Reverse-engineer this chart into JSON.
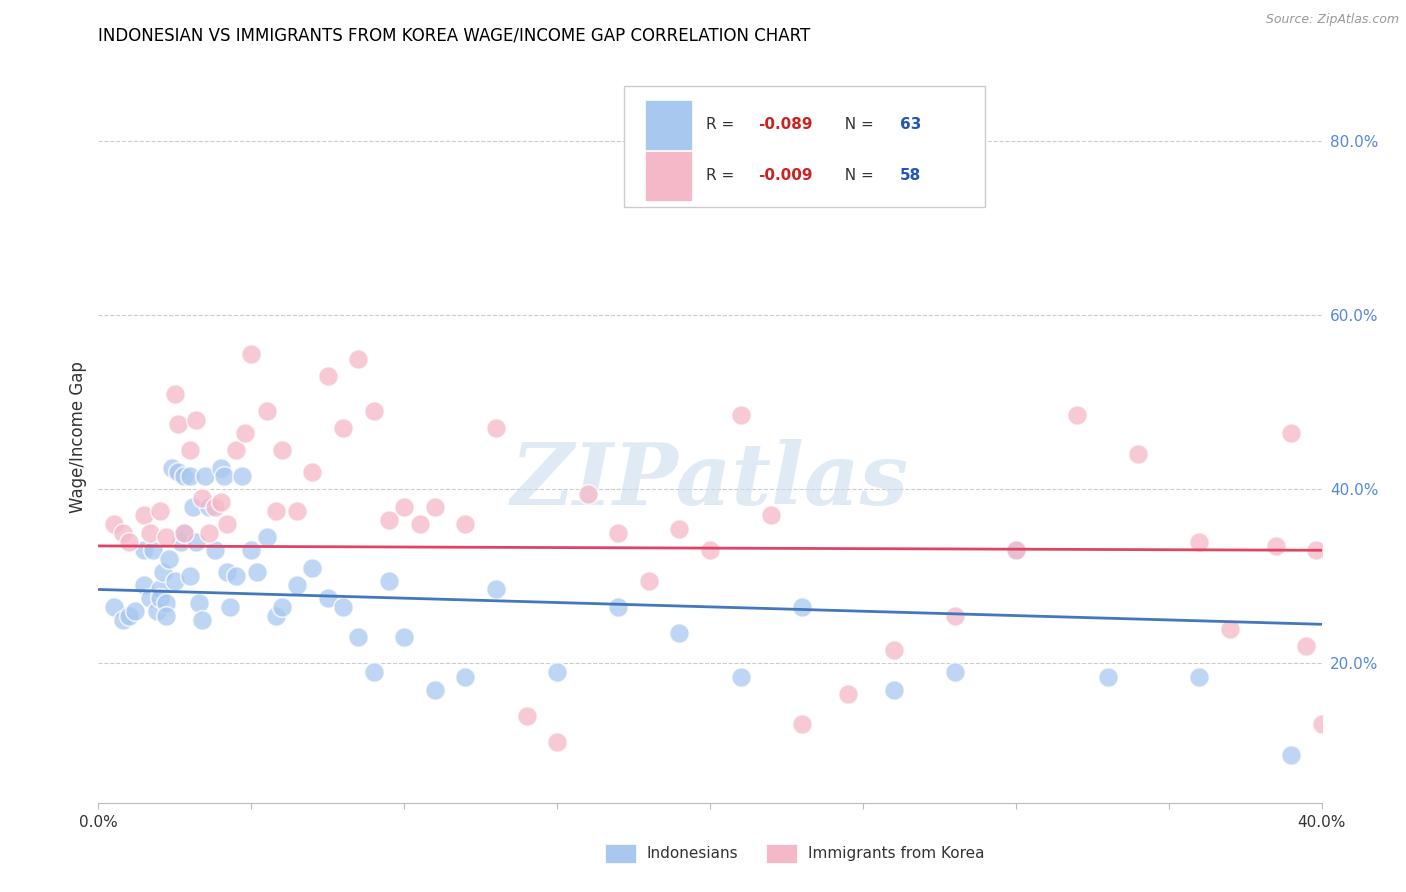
{
  "title": "INDONESIAN VS IMMIGRANTS FROM KOREA WAGE/INCOME GAP CORRELATION CHART",
  "source": "Source: ZipAtlas.com",
  "ylabel": "Wage/Income Gap",
  "right_ytick_vals": [
    0.2,
    0.4,
    0.6,
    0.8
  ],
  "x_range": [
    0.0,
    0.4
  ],
  "y_range": [
    0.04,
    0.88
  ],
  "blue_color": "#A8C8F0",
  "pink_color": "#F5B8C8",
  "blue_line_color": "#4477BB",
  "pink_line_color": "#DD4466",
  "watermark": "ZIPatlas",
  "blue_line_x": [
    0.0,
    0.4
  ],
  "blue_line_y": [
    0.285,
    0.245
  ],
  "pink_line_x": [
    0.0,
    0.4
  ],
  "pink_line_y": [
    0.335,
    0.33
  ],
  "indonesians_x": [
    0.005,
    0.008,
    0.01,
    0.012,
    0.015,
    0.015,
    0.017,
    0.018,
    0.019,
    0.02,
    0.02,
    0.021,
    0.022,
    0.022,
    0.023,
    0.024,
    0.025,
    0.026,
    0.027,
    0.028,
    0.028,
    0.03,
    0.03,
    0.031,
    0.032,
    0.033,
    0.034,
    0.035,
    0.036,
    0.038,
    0.04,
    0.041,
    0.042,
    0.043,
    0.045,
    0.047,
    0.05,
    0.052,
    0.055,
    0.058,
    0.06,
    0.065,
    0.07,
    0.075,
    0.08,
    0.085,
    0.09,
    0.095,
    0.1,
    0.11,
    0.12,
    0.13,
    0.15,
    0.17,
    0.19,
    0.21,
    0.23,
    0.26,
    0.28,
    0.3,
    0.33,
    0.36,
    0.39
  ],
  "indonesians_y": [
    0.265,
    0.25,
    0.255,
    0.26,
    0.33,
    0.29,
    0.275,
    0.33,
    0.26,
    0.285,
    0.275,
    0.305,
    0.27,
    0.255,
    0.32,
    0.425,
    0.295,
    0.42,
    0.34,
    0.35,
    0.415,
    0.415,
    0.3,
    0.38,
    0.34,
    0.27,
    0.25,
    0.415,
    0.38,
    0.33,
    0.425,
    0.415,
    0.305,
    0.265,
    0.3,
    0.415,
    0.33,
    0.305,
    0.345,
    0.255,
    0.265,
    0.29,
    0.31,
    0.275,
    0.265,
    0.23,
    0.19,
    0.295,
    0.23,
    0.17,
    0.185,
    0.285,
    0.19,
    0.265,
    0.235,
    0.185,
    0.265,
    0.17,
    0.19,
    0.33,
    0.185,
    0.185,
    0.095
  ],
  "korea_x": [
    0.005,
    0.008,
    0.01,
    0.015,
    0.017,
    0.02,
    0.022,
    0.025,
    0.026,
    0.028,
    0.03,
    0.032,
    0.034,
    0.036,
    0.038,
    0.04,
    0.042,
    0.045,
    0.048,
    0.05,
    0.055,
    0.058,
    0.06,
    0.065,
    0.07,
    0.075,
    0.08,
    0.085,
    0.09,
    0.095,
    0.1,
    0.105,
    0.11,
    0.12,
    0.13,
    0.14,
    0.15,
    0.16,
    0.17,
    0.18,
    0.19,
    0.2,
    0.21,
    0.22,
    0.23,
    0.245,
    0.26,
    0.28,
    0.3,
    0.32,
    0.34,
    0.36,
    0.37,
    0.385,
    0.39,
    0.395,
    0.398,
    0.4
  ],
  "korea_y": [
    0.36,
    0.35,
    0.34,
    0.37,
    0.35,
    0.375,
    0.345,
    0.51,
    0.475,
    0.35,
    0.445,
    0.48,
    0.39,
    0.35,
    0.38,
    0.385,
    0.36,
    0.445,
    0.465,
    0.555,
    0.49,
    0.375,
    0.445,
    0.375,
    0.42,
    0.53,
    0.47,
    0.55,
    0.49,
    0.365,
    0.38,
    0.36,
    0.38,
    0.36,
    0.47,
    0.14,
    0.11,
    0.395,
    0.35,
    0.295,
    0.355,
    0.33,
    0.485,
    0.37,
    0.13,
    0.165,
    0.215,
    0.255,
    0.33,
    0.485,
    0.44,
    0.34,
    0.24,
    0.335,
    0.465,
    0.22,
    0.33,
    0.13
  ]
}
